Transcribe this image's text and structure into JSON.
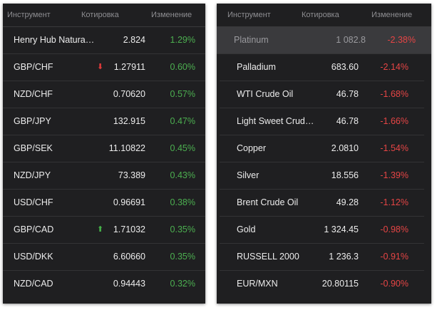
{
  "left": {
    "headers": {
      "instrument": "Инструмент",
      "quote": "Котировка",
      "change": "Изменение"
    },
    "rows": [
      {
        "name": "Henry Hub Natura…",
        "price": "2.824",
        "change": "1.29%",
        "dir": "up",
        "arrow": ""
      },
      {
        "name": "GBP/CHF",
        "price": "1.27911",
        "change": "0.60%",
        "dir": "up",
        "arrow": "down"
      },
      {
        "name": "NZD/CHF",
        "price": "0.70620",
        "change": "0.57%",
        "dir": "up",
        "arrow": ""
      },
      {
        "name": "GBP/JPY",
        "price": "132.915",
        "change": "0.47%",
        "dir": "up",
        "arrow": ""
      },
      {
        "name": "GBP/SEK",
        "price": "11.10822",
        "change": "0.45%",
        "dir": "up",
        "arrow": ""
      },
      {
        "name": "NZD/JPY",
        "price": "73.389",
        "change": "0.43%",
        "dir": "up",
        "arrow": ""
      },
      {
        "name": "USD/CHF",
        "price": "0.96691",
        "change": "0.38%",
        "dir": "up",
        "arrow": ""
      },
      {
        "name": "GBP/CAD",
        "price": "1.71032",
        "change": "0.35%",
        "dir": "up",
        "arrow": "up"
      },
      {
        "name": "USD/DKK",
        "price": "6.60660",
        "change": "0.35%",
        "dir": "up",
        "arrow": ""
      },
      {
        "name": "NZD/CAD",
        "price": "0.94443",
        "change": "0.32%",
        "dir": "up",
        "arrow": ""
      }
    ]
  },
  "right": {
    "headers": {
      "instrument": "Инструмент",
      "quote": "Котировка",
      "change": "Изменение"
    },
    "rows": [
      {
        "name": "Platinum",
        "price": "1 082.8",
        "change": "-2.38%",
        "dir": "down",
        "highlight": true
      },
      {
        "name": "Palladium",
        "price": "683.60",
        "change": "-2.14%",
        "dir": "down"
      },
      {
        "name": "WTI Crude Oil",
        "price": "46.78",
        "change": "-1.68%",
        "dir": "down"
      },
      {
        "name": "Light Sweet Crud…",
        "price": "46.78",
        "change": "-1.66%",
        "dir": "down"
      },
      {
        "name": "Copper",
        "price": "2.0810",
        "change": "-1.54%",
        "dir": "down"
      },
      {
        "name": "Silver",
        "price": "18.556",
        "change": "-1.39%",
        "dir": "down"
      },
      {
        "name": "Brent Crude Oil",
        "price": "49.28",
        "change": "-1.12%",
        "dir": "down"
      },
      {
        "name": "Gold",
        "price": "1 324.45",
        "change": "-0.98%",
        "dir": "down"
      },
      {
        "name": "RUSSELL 2000",
        "price": "1 236.3",
        "change": "-0.91%",
        "dir": "down"
      },
      {
        "name": "EUR/MXN",
        "price": "20.80115",
        "change": "-0.90%",
        "dir": "down"
      }
    ]
  },
  "icons": {
    "up_arrow": "arrow-up-icon",
    "down_arrow": "arrow-down-icon"
  },
  "colors": {
    "up": "#4caf50",
    "down": "#e64545",
    "panel_bg": "#1f1f21"
  }
}
